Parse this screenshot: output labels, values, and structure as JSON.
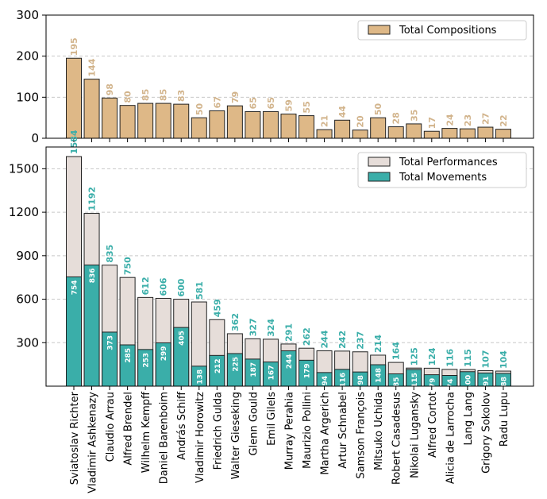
{
  "chart_data": {
    "type": "bar",
    "categories": [
      "Sviatoslav Richter",
      "Vladimir Ashkenazy",
      "Claudio Arrau",
      "Alfred Brendel",
      "Wilhelm Kempff",
      "Daniel Barenboim",
      "András Schiff",
      "Vladimir Horowitz",
      "Friedrich Gulda",
      "Walter Gieseking",
      "Glenn Gould",
      "Emil Gilels",
      "Murray Perahia",
      "Maurizio Pollini",
      "Martha Argerich",
      "Artur Schnabel",
      "Samson François",
      "Mitsuko Uchida",
      "Robert Casadesus",
      "Nikolai Lugansky",
      "Alfred Cortot",
      "Alicia de Larrocha",
      "Lang Lang",
      "Grigory Sokolov",
      "Radu Lupu"
    ],
    "panels": [
      {
        "name": "compositions",
        "ylim": [
          0,
          300
        ],
        "yticks": [
          0,
          100,
          200,
          300
        ],
        "grid": true,
        "legend_position": "top-right",
        "series": [
          {
            "name": "Total Compositions",
            "color": "#deb887",
            "label_color": "#d2b48c",
            "values": [
              195,
              144,
              98,
              80,
              85,
              85,
              83,
              50,
              67,
              79,
              65,
              65,
              59,
              55,
              21,
              44,
              20,
              50,
              28,
              35,
              17,
              24,
              23,
              27,
              22
            ]
          }
        ]
      },
      {
        "name": "performances",
        "ylim": [
          0,
          1650
        ],
        "yticks": [
          300,
          600,
          900,
          1200,
          1500
        ],
        "grid": true,
        "legend_position": "top-right",
        "series": [
          {
            "name": "Total Performances",
            "color": "#e6ddd9",
            "label_color": "#3aaea9",
            "values": [
              1584,
              1192,
              835,
              750,
              612,
              606,
              600,
              581,
              459,
              362,
              327,
              324,
              291,
              262,
              244,
              242,
              237,
              214,
              164,
              125,
              124,
              116,
              115,
              107,
              104
            ]
          },
          {
            "name": "Total Movements",
            "color": "#3aaea9",
            "label_color": "#ffffff",
            "values": [
              754,
              836,
              373,
              285,
              253,
              299,
              405,
              138,
              212,
              225,
              187,
              167,
              244,
              179,
              94,
              116,
              98,
              148,
              85,
              115,
              79,
              74,
              100,
              91,
              88
            ]
          }
        ]
      }
    ]
  }
}
